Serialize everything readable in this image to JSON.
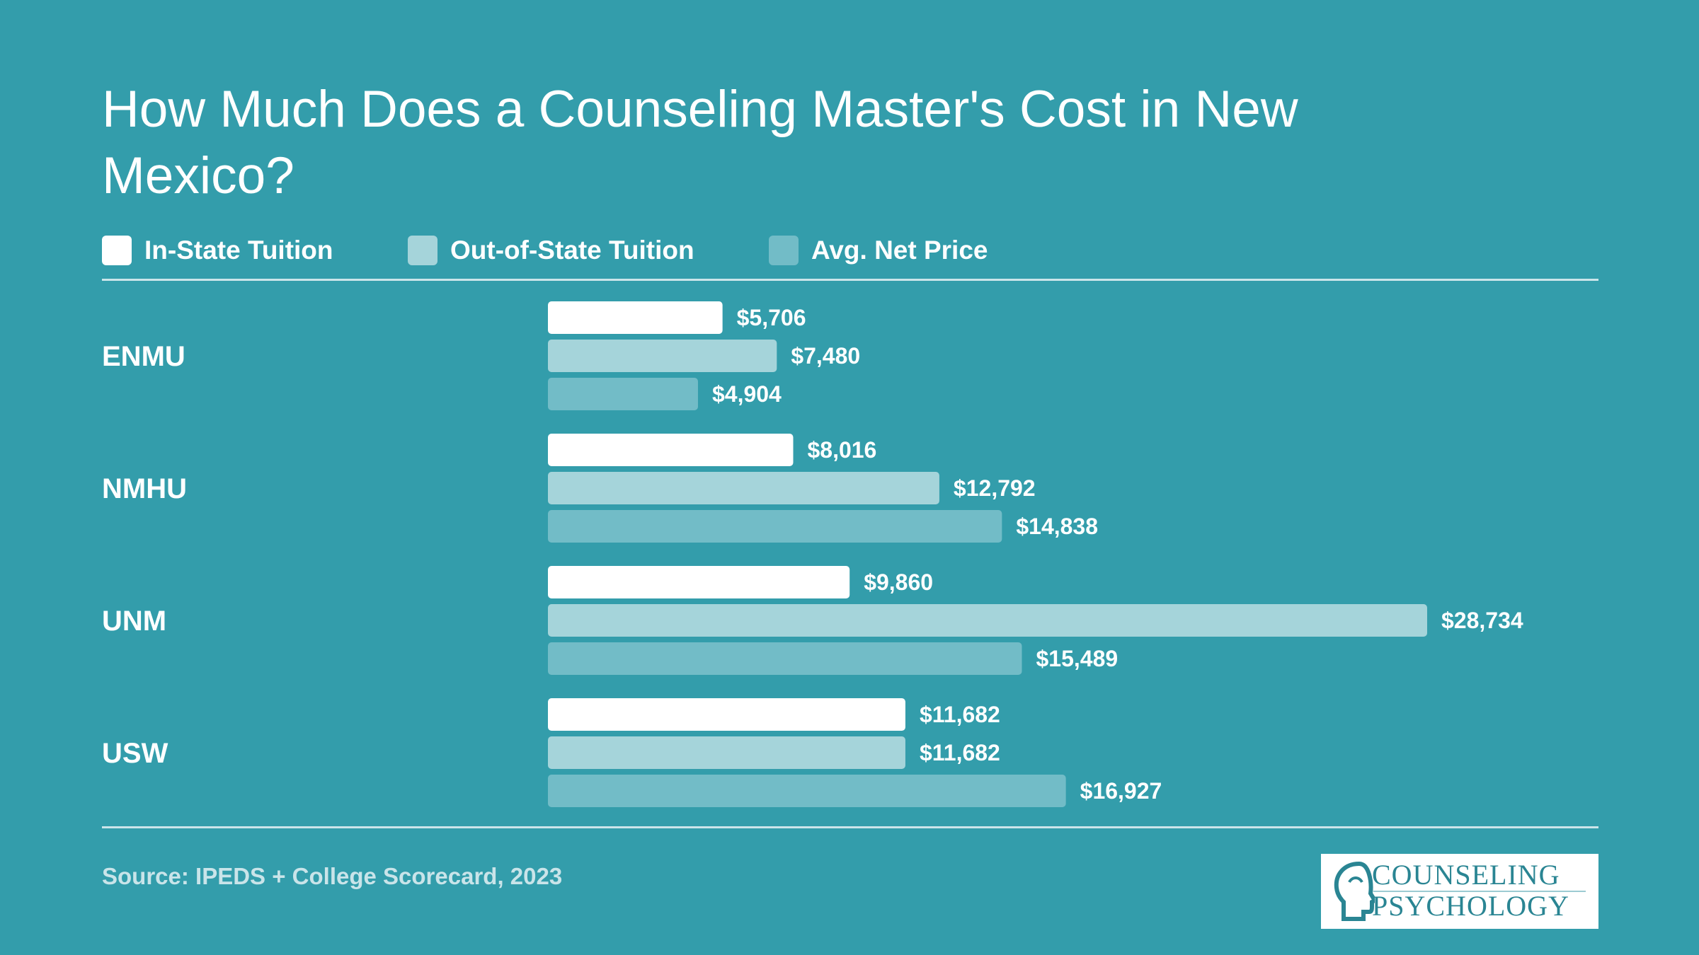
{
  "title": "How Much Does a Counseling Master's Cost in New Mexico?",
  "legend": [
    {
      "label": "In-State Tuition",
      "color": "#ffffff"
    },
    {
      "label": "Out-of-State Tuition",
      "color": "#a5d4da"
    },
    {
      "label": "Avg. Net Price",
      "color": "#72bcc7"
    }
  ],
  "source": "Source: IPEDS + College Scorecard, 2023",
  "logo": {
    "line1": "COUNSELING",
    "line2": "PSYCHOLOGY",
    "icon": "head-profile-icon"
  },
  "colors": {
    "background": "#339dab",
    "in_state": "#ffffff",
    "out_of_state": "#a5d4da",
    "net_price": "#72bcc7"
  },
  "chart_data": {
    "type": "bar",
    "orientation": "horizontal",
    "title": "How Much Does a Counseling Master's Cost in New Mexico?",
    "categories": [
      "ENMU",
      "NMHU",
      "UNM",
      "USW"
    ],
    "series": [
      {
        "name": "In-State Tuition",
        "values": [
          5706,
          8016,
          9860,
          11682
        ],
        "labels": [
          "$5,706",
          "$8,016",
          "$9,860",
          "$11,682"
        ]
      },
      {
        "name": "Out-of-State Tuition",
        "values": [
          7480,
          12792,
          28734,
          11682
        ],
        "labels": [
          "$7,480",
          "$12,792",
          "$28,734",
          "$11,682"
        ]
      },
      {
        "name": "Avg. Net Price",
        "values": [
          4904,
          14838,
          15489,
          16927
        ],
        "labels": [
          "$4,904",
          "$14,838",
          "$15,489",
          "$16,927"
        ]
      }
    ],
    "xlim": [
      0,
      28734
    ],
    "grid": false,
    "legend_position": "top-left"
  }
}
